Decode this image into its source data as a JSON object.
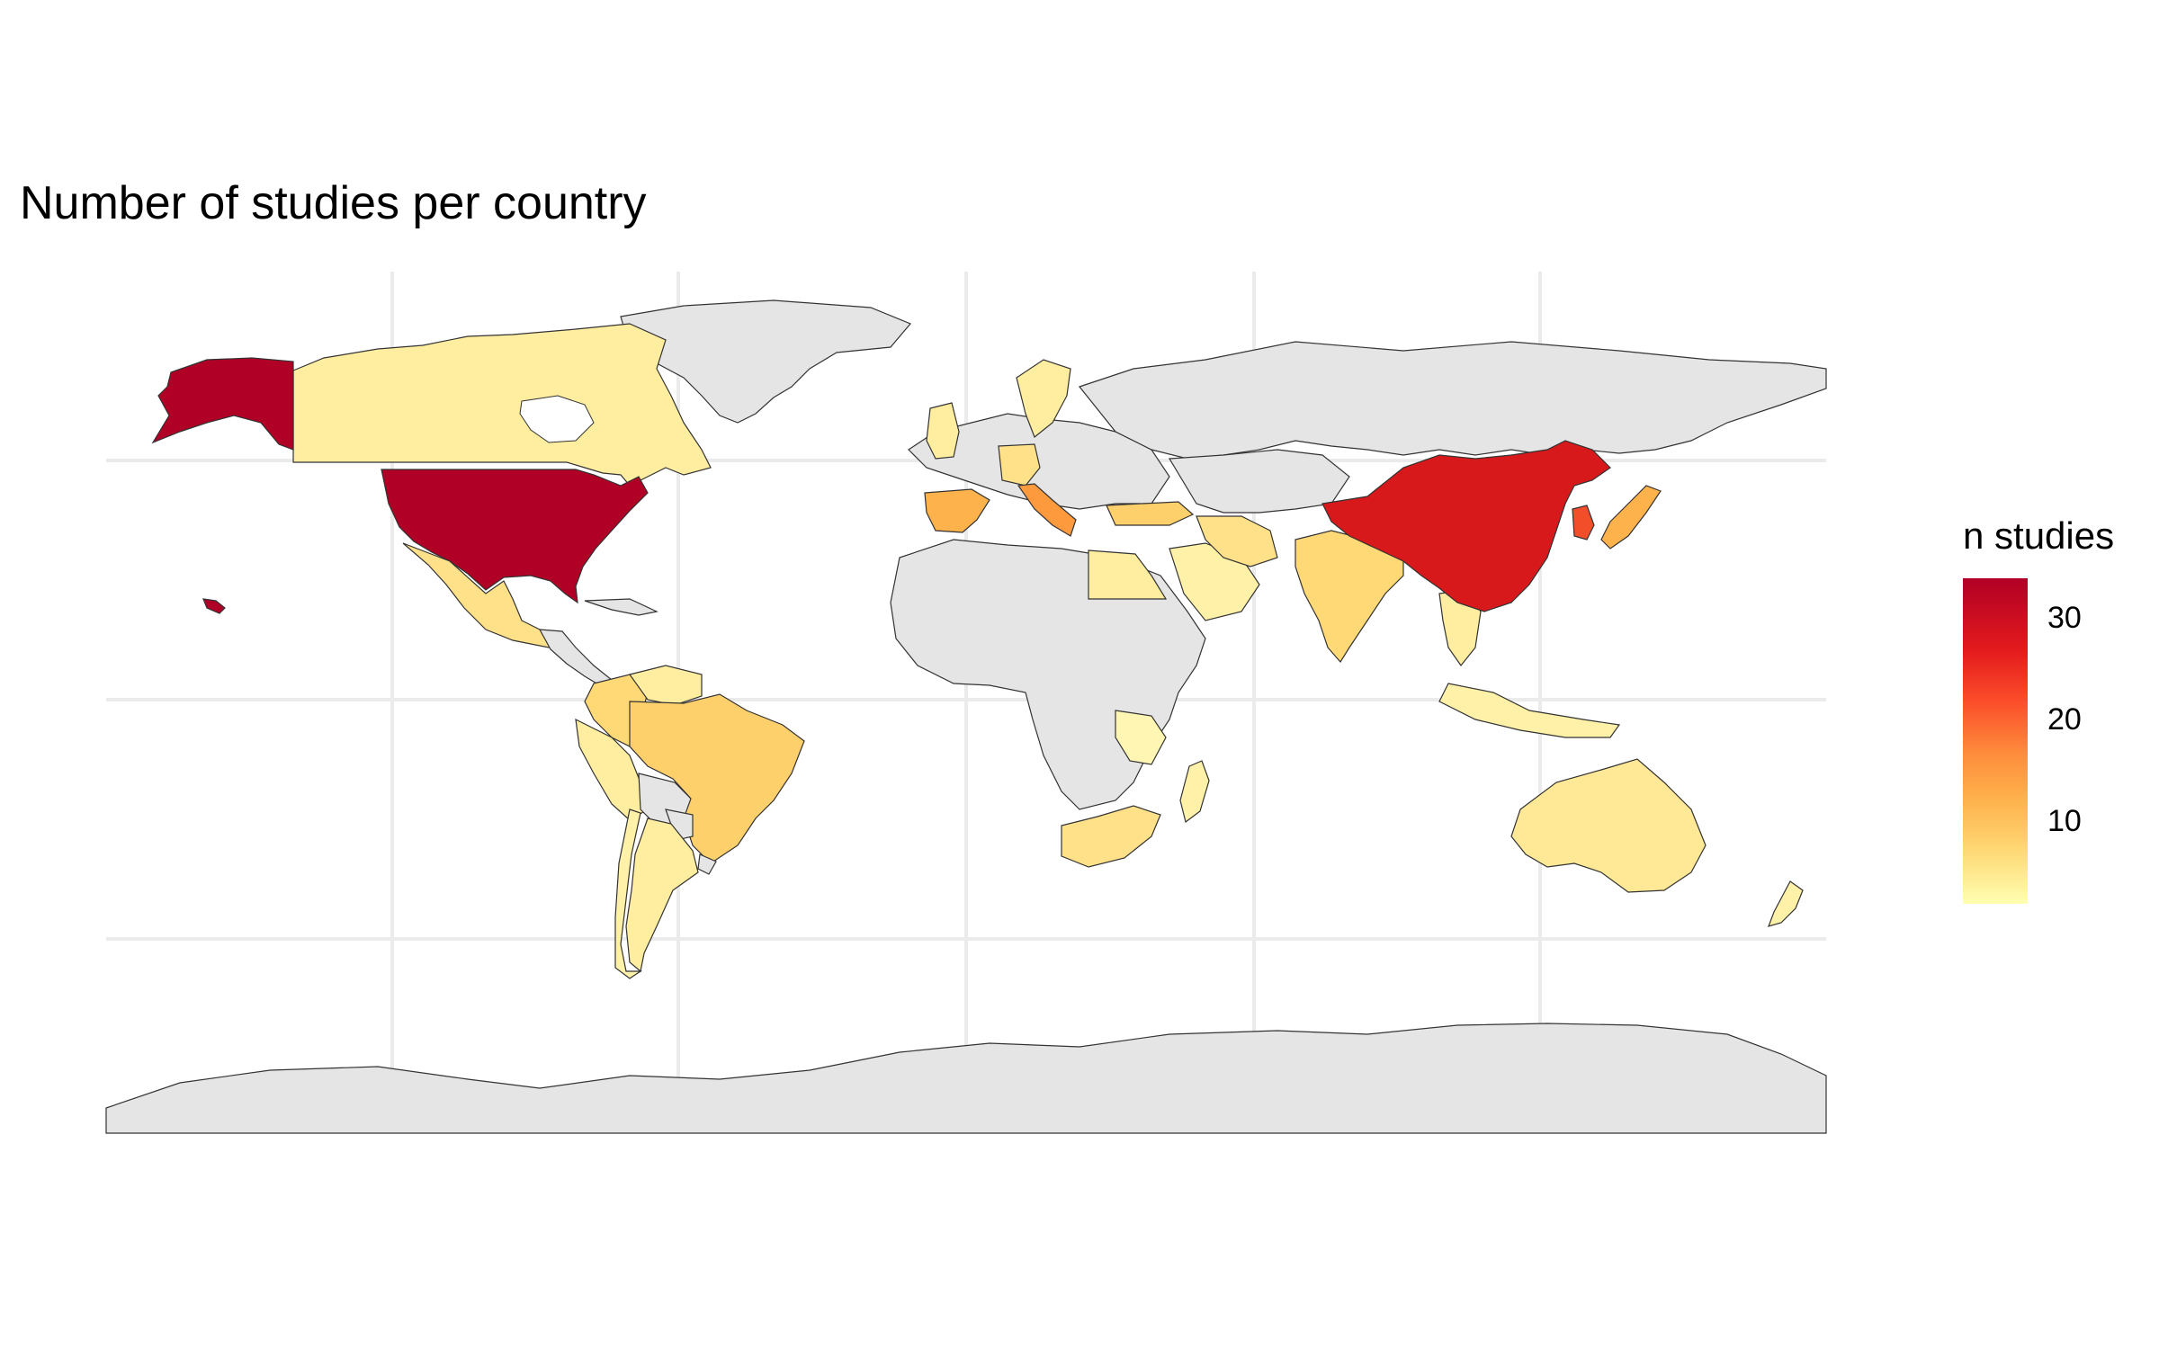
{
  "title": "Number of studies per country",
  "legend": {
    "title": "n studies",
    "ticks": [
      {
        "value": 30,
        "label": "30"
      },
      {
        "value": 20,
        "label": "20"
      },
      {
        "value": 10,
        "label": "10"
      }
    ],
    "min": 1,
    "max": 33
  },
  "colors": {
    "low": "#ffffb2",
    "mid": "#fd8d3c",
    "high": "#b10026",
    "missing": "#e5e5e5",
    "grid": "#ebebeb"
  },
  "chart_data": {
    "type": "choropleth",
    "legend_position": "right",
    "grid": true,
    "value_range": [
      1,
      33
    ],
    "countries": [
      {
        "name": "United States",
        "value": 33
      },
      {
        "name": "China",
        "value": 30
      },
      {
        "name": "South Korea",
        "value": 22
      },
      {
        "name": "Italy",
        "value": 15
      },
      {
        "name": "Spain",
        "value": 12
      },
      {
        "name": "Japan",
        "value": 9
      },
      {
        "name": "Brazil",
        "value": 7
      },
      {
        "name": "Turkey",
        "value": 6
      },
      {
        "name": "Germany",
        "value": 6
      },
      {
        "name": "India",
        "value": 5
      },
      {
        "name": "Mexico",
        "value": 4
      },
      {
        "name": "Colombia",
        "value": 4
      },
      {
        "name": "Australia",
        "value": 4
      },
      {
        "name": "South Africa",
        "value": 4
      },
      {
        "name": "Iran",
        "value": 3
      },
      {
        "name": "Canada",
        "value": 2
      },
      {
        "name": "Argentina",
        "value": 2
      },
      {
        "name": "Egypt",
        "value": 2
      },
      {
        "name": "Saudi Arabia",
        "value": 2
      },
      {
        "name": "United Kingdom",
        "value": 2
      },
      {
        "name": "Sweden",
        "value": 2
      },
      {
        "name": "Thailand",
        "value": 2
      },
      {
        "name": "Madagascar",
        "value": 1
      },
      {
        "name": "New Zealand",
        "value": 1
      },
      {
        "name": "Zambia",
        "value": 1
      },
      {
        "name": "Indonesia",
        "value": 1
      }
    ]
  }
}
